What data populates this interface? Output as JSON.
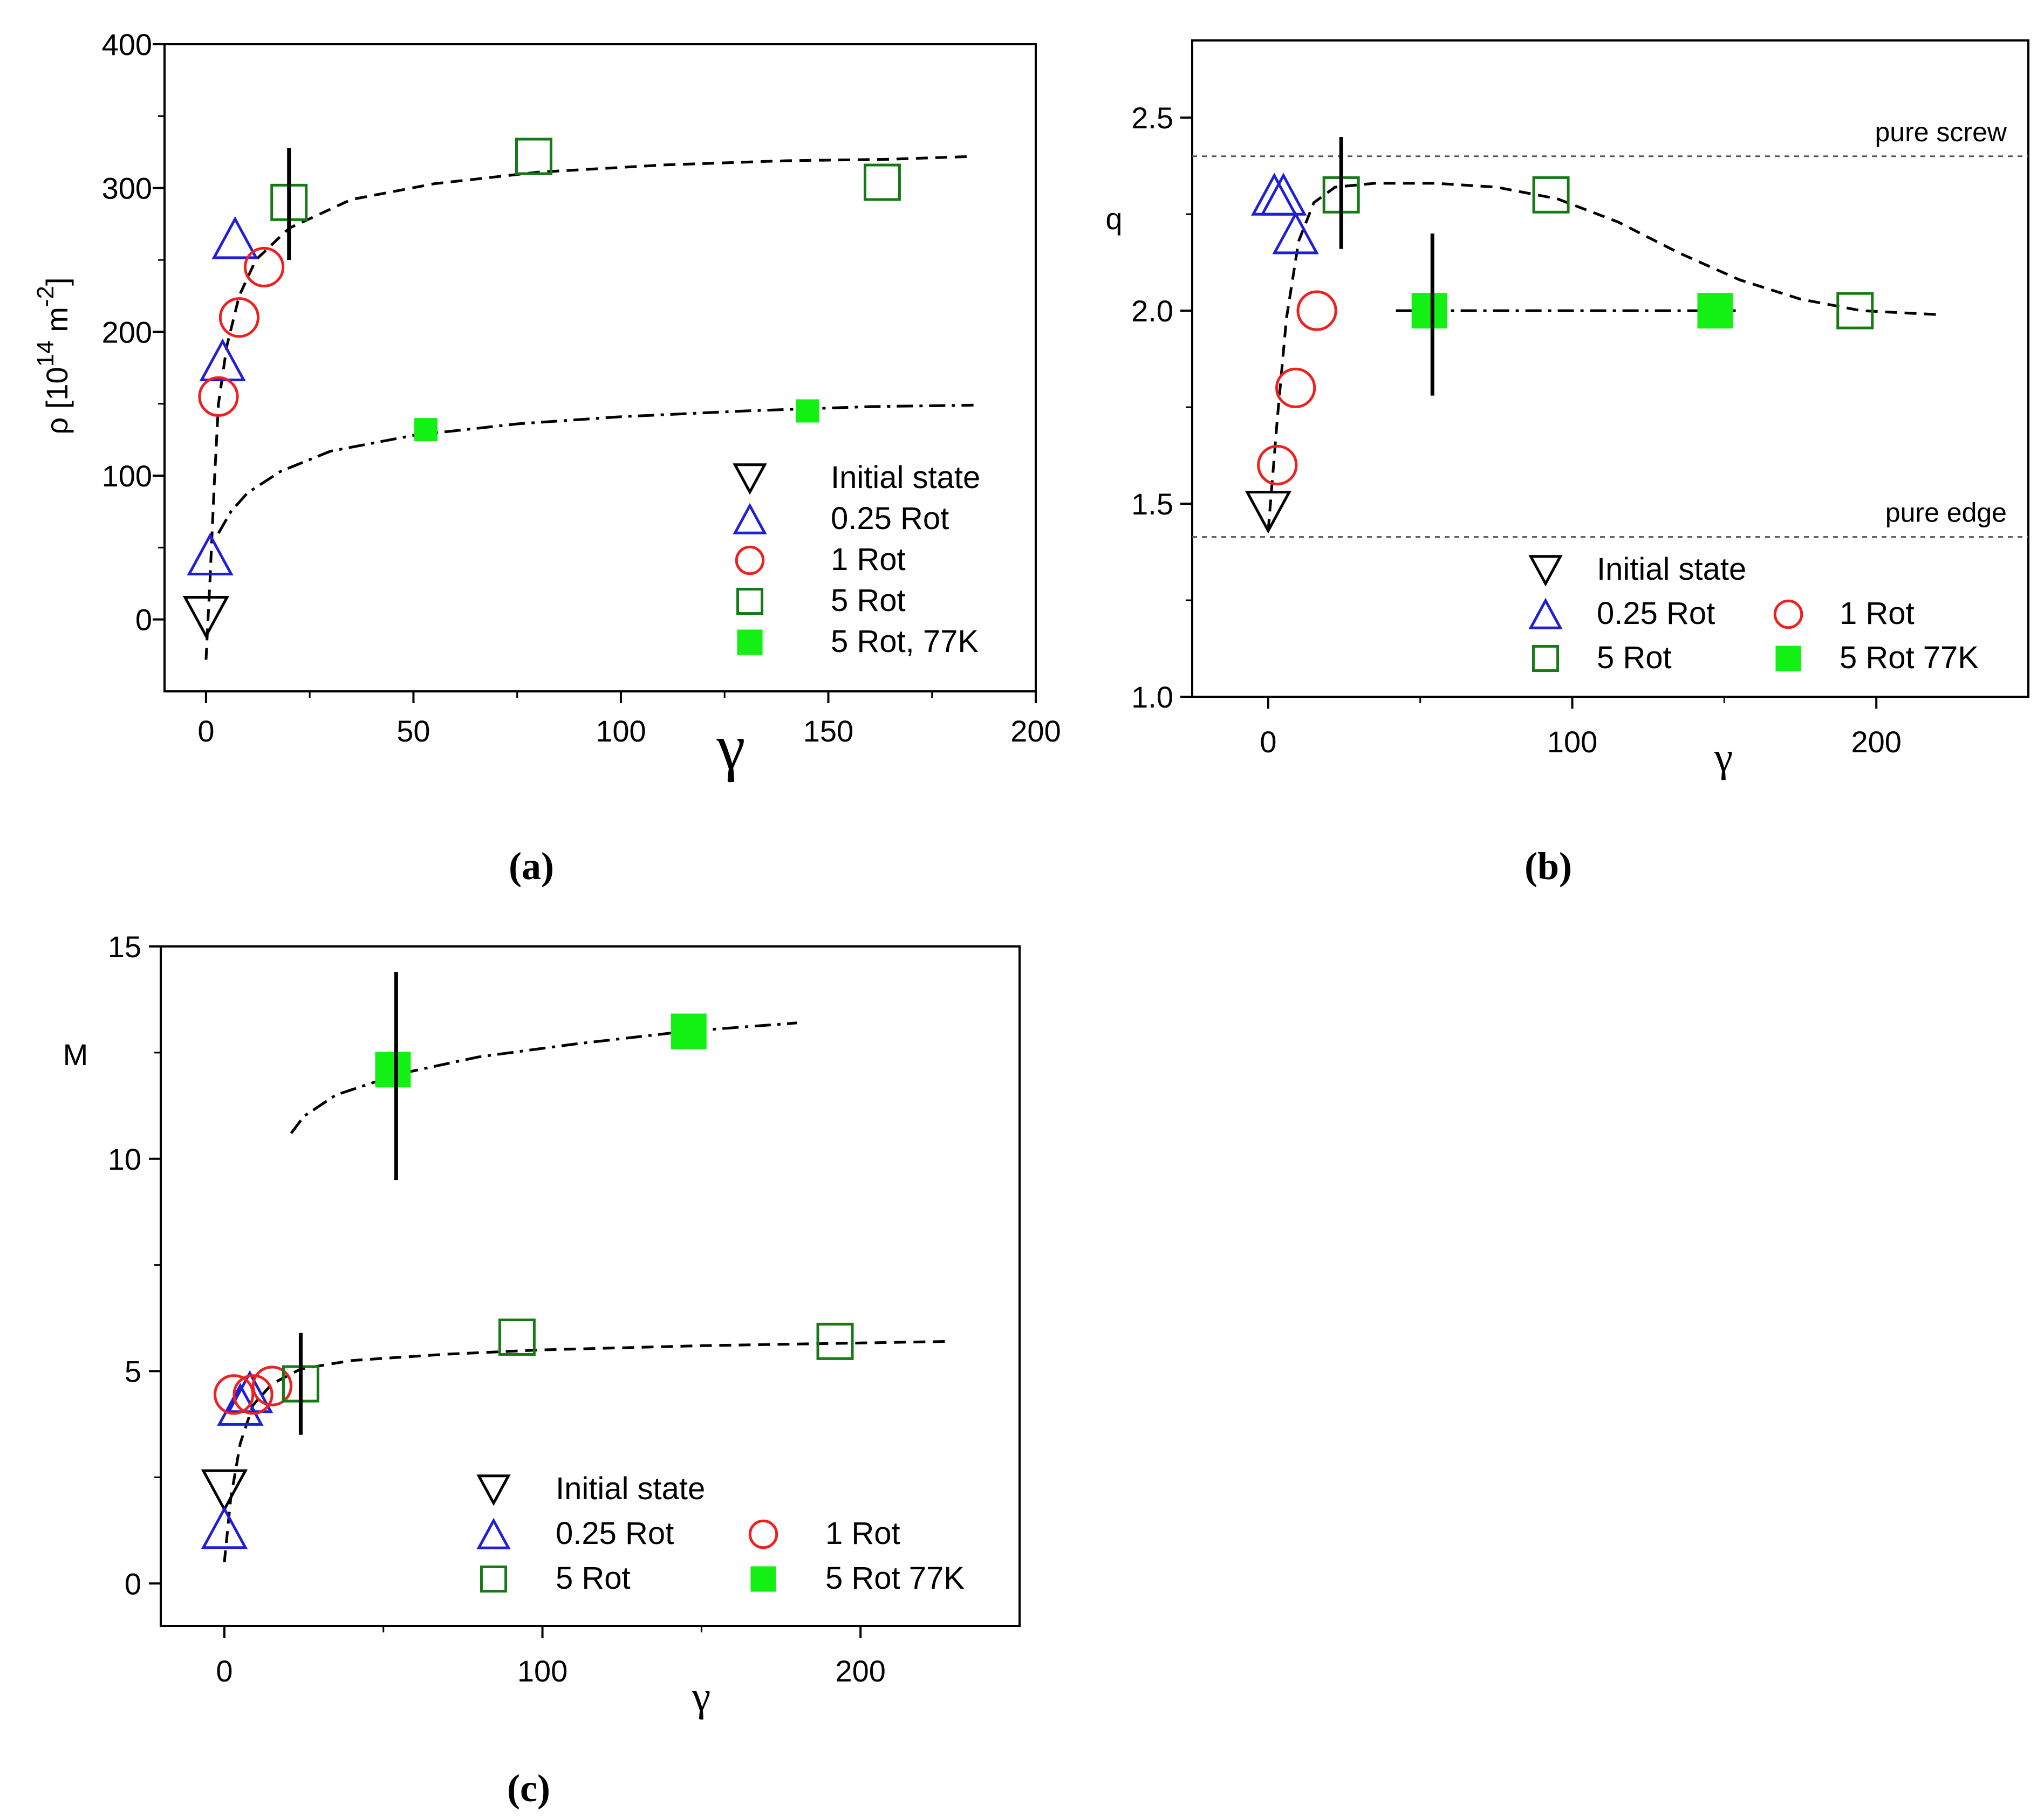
{
  "colors": {
    "initial": "#000000",
    "rot025": "#1f1fd6",
    "rot1": "#ee2020",
    "rot5": "#157a15",
    "rot5_77k": "#13f013",
    "axis": "#000000"
  },
  "chart_data": [
    {
      "id": "a",
      "type": "scatter",
      "panel_label": "(a)",
      "xlabel": "γ",
      "ylabel": "ρ [10",
      "ylabel_sup": "14",
      "ylabel_unit": " m",
      "ylabel_unit_sup": "-2",
      "ylabel_close": "]",
      "xlim": [
        -10,
        200
      ],
      "ylim": [
        -50,
        400
      ],
      "xticks": [
        "0",
        "50",
        "100",
        "150",
        "200"
      ],
      "xtick_values": [
        0,
        50,
        100,
        150,
        200
      ],
      "yticks": [
        "0",
        "100",
        "200",
        "300",
        "400"
      ],
      "ytick_values": [
        0,
        100,
        200,
        300,
        400
      ],
      "legend_position": "bottom-right",
      "legend": [
        {
          "label": "Initial state",
          "series": "initial"
        },
        {
          "label": "0.25 Rot",
          "series": "rot025"
        },
        {
          "label": "1 Rot",
          "series": "rot1"
        },
        {
          "label": "5 Rot",
          "series": "rot5"
        },
        {
          "label": "5 Rot,  77K",
          "series": "rot5_77k"
        }
      ],
      "series": [
        {
          "name": "Initial state",
          "key": "initial",
          "marker": "triangle-down",
          "size": "big",
          "points": [
            [
              0,
              2
            ]
          ]
        },
        {
          "name": "0.25 Rot",
          "key": "rot025",
          "marker": "triangle-up",
          "size": "big",
          "points": [
            [
              1,
              45
            ],
            [
              4,
              180
            ],
            [
              7,
              265
            ]
          ]
        },
        {
          "name": "1 Rot",
          "key": "rot1",
          "marker": "circle",
          "size": "big",
          "points": [
            [
              3,
              155
            ],
            [
              8,
              210
            ],
            [
              14,
              245
            ]
          ]
        },
        {
          "name": "5 Rot",
          "key": "rot5",
          "marker": "square",
          "size": "big",
          "points": [
            [
              20,
              290
            ],
            [
              79,
              322
            ],
            [
              163,
              304
            ]
          ]
        },
        {
          "name": "5 Rot, 77K",
          "key": "rot5_77k",
          "marker": "square-filled",
          "size": "small",
          "points": [
            [
              53,
              132
            ],
            [
              145,
              145
            ]
          ]
        }
      ],
      "error_bars": [
        [
          20,
          250,
          328
        ]
      ],
      "fit_lines": [
        {
          "style": "dash",
          "points": [
            [
              0,
              -28
            ],
            [
              1,
              30
            ],
            [
              2,
              95
            ],
            [
              3,
              150
            ],
            [
              5,
              190
            ],
            [
              8,
              225
            ],
            [
              12,
              250
            ],
            [
              20,
              272
            ],
            [
              35,
              292
            ],
            [
              55,
              303
            ],
            [
              80,
              311
            ],
            [
              110,
              316
            ],
            [
              140,
              319
            ],
            [
              165,
              320
            ],
            [
              185,
              322
            ]
          ]
        },
        {
          "style": "dashdot",
          "points": [
            [
              3,
              60
            ],
            [
              6,
              75
            ],
            [
              10,
              88
            ],
            [
              18,
              103
            ],
            [
              30,
              117
            ],
            [
              50,
              128
            ],
            [
              75,
              136
            ],
            [
              100,
              141
            ],
            [
              130,
              145
            ],
            [
              160,
              148
            ],
            [
              185,
              149
            ]
          ]
        }
      ]
    },
    {
      "id": "b",
      "type": "scatter",
      "panel_label": "(b)",
      "xlabel": "γ",
      "ylabel": "q",
      "xlim": [
        -25,
        250
      ],
      "ylim": [
        1.0,
        2.7
      ],
      "xticks": [
        "0",
        "100",
        "200"
      ],
      "xtick_values": [
        0,
        100,
        200
      ],
      "yticks": [
        "1.0",
        "1.5",
        "2.0",
        "2.5"
      ],
      "ytick_values": [
        1.0,
        1.5,
        2.0,
        2.5
      ],
      "legend_position": "bottom",
      "reference_lines": [
        {
          "label": "pure screw",
          "y": 2.4
        },
        {
          "label": "pure edge",
          "y": 1.414
        }
      ],
      "legend": [
        {
          "label": "Initial state",
          "series": "initial"
        },
        {
          "label": "0.25 Rot",
          "series": "rot025"
        },
        {
          "label": "1 Rot",
          "series": "rot1"
        },
        {
          "label": "5 Rot",
          "series": "rot5"
        },
        {
          "label": "5 Rot  77K",
          "series": "rot5_77k"
        }
      ],
      "series": [
        {
          "name": "Initial state",
          "key": "initial",
          "marker": "triangle-down",
          "size": "big",
          "points": [
            [
              0,
              1.48
            ]
          ]
        },
        {
          "name": "0.25 Rot",
          "key": "rot025",
          "marker": "triangle-up",
          "size": "big",
          "points": [
            [
              2,
              2.3
            ],
            [
              5,
              2.3
            ],
            [
              9,
              2.2
            ]
          ]
        },
        {
          "name": "1 Rot",
          "key": "rot1",
          "marker": "circle",
          "size": "big",
          "points": [
            [
              3,
              1.6
            ],
            [
              9,
              1.8
            ],
            [
              16,
              2.0
            ]
          ]
        },
        {
          "name": "5 Rot",
          "key": "rot5",
          "marker": "square",
          "size": "big",
          "points": [
            [
              24,
              2.3
            ],
            [
              93,
              2.3
            ],
            [
              193,
              2.0
            ]
          ]
        },
        {
          "name": "5 Rot 77K",
          "key": "rot5_77k",
          "marker": "square-filled",
          "size": "big",
          "points": [
            [
              53,
              2.0
            ],
            [
              147,
              2.0
            ]
          ]
        }
      ],
      "error_bars": [
        [
          24,
          2.16,
          2.45
        ],
        [
          54,
          1.78,
          2.2
        ]
      ],
      "fit_lines": [
        {
          "style": "dash",
          "points": [
            [
              0,
              1.43
            ],
            [
              3,
              1.72
            ],
            [
              6,
              1.98
            ],
            [
              10,
              2.18
            ],
            [
              15,
              2.28
            ],
            [
              22,
              2.32
            ],
            [
              35,
              2.33
            ],
            [
              55,
              2.33
            ],
            [
              75,
              2.32
            ],
            [
              95,
              2.29
            ],
            [
              115,
              2.23
            ],
            [
              135,
              2.15
            ],
            [
              155,
              2.08
            ],
            [
              175,
              2.03
            ],
            [
              195,
              2.0
            ],
            [
              220,
              1.99
            ]
          ]
        },
        {
          "style": "dashdot",
          "points": [
            [
              42,
              2.0
            ],
            [
              90,
              2.0
            ],
            [
              155,
              2.0
            ]
          ]
        }
      ]
    },
    {
      "id": "c",
      "type": "scatter",
      "panel_label": "(c)",
      "xlabel": "γ",
      "ylabel": "M",
      "xlim": [
        -20,
        250
      ],
      "ylim": [
        -1,
        15
      ],
      "xticks": [
        "0",
        "100",
        "200"
      ],
      "xtick_values": [
        0,
        100,
        200
      ],
      "yticks": [
        "0",
        "5",
        "10",
        "15"
      ],
      "ytick_values": [
        0,
        5,
        10,
        15
      ],
      "legend_position": "bottom",
      "legend": [
        {
          "label": "Initial state",
          "series": "initial"
        },
        {
          "label": "0.25 Rot",
          "series": "rot025"
        },
        {
          "label": "1 Rot",
          "series": "rot1"
        },
        {
          "label": "5 Rot",
          "series": "rot5"
        },
        {
          "label": "5 Rot  77K",
          "series": "rot5_77k"
        }
      ],
      "series": [
        {
          "name": "Initial state",
          "key": "initial",
          "marker": "triangle-down",
          "size": "big",
          "points": [
            [
              0,
              2.2
            ]
          ]
        },
        {
          "name": "0.25 Rot",
          "key": "rot025",
          "marker": "triangle-up",
          "size": "big",
          "points": [
            [
              0,
              1.3
            ],
            [
              5,
              4.2
            ],
            [
              8,
              4.5
            ]
          ]
        },
        {
          "name": "1 Rot",
          "key": "rot1",
          "marker": "circle",
          "size": "big",
          "points": [
            [
              3,
              4.45
            ],
            [
              9,
              4.45
            ],
            [
              15,
              4.65
            ]
          ]
        },
        {
          "name": "5 Rot",
          "key": "rot5",
          "marker": "square",
          "size": "big",
          "points": [
            [
              24,
              4.7
            ],
            [
              92,
              5.8
            ],
            [
              192,
              5.7
            ]
          ]
        },
        {
          "name": "5 Rot 77K",
          "key": "rot5_77k",
          "marker": "square-filled",
          "size": "big",
          "points": [
            [
              53,
              12.1
            ],
            [
              146,
              13.0
            ]
          ]
        }
      ],
      "error_bars": [
        [
          24,
          3.5,
          5.9
        ],
        [
          54,
          9.5,
          14.4
        ]
      ],
      "fit_lines": [
        {
          "style": "dash",
          "points": [
            [
              0,
              0.5
            ],
            [
              2,
              2.0
            ],
            [
              5,
              3.3
            ],
            [
              9,
              4.2
            ],
            [
              15,
              4.7
            ],
            [
              24,
              5.05
            ],
            [
              40,
              5.25
            ],
            [
              70,
              5.4
            ],
            [
              100,
              5.5
            ],
            [
              150,
              5.6
            ],
            [
              190,
              5.65
            ],
            [
              228,
              5.7
            ]
          ]
        },
        {
          "style": "dashdot",
          "points": [
            [
              21,
              10.6
            ],
            [
              25,
              11.0
            ],
            [
              35,
              11.5
            ],
            [
              55,
              12.0
            ],
            [
              80,
              12.4
            ],
            [
              110,
              12.7
            ],
            [
              145,
              13.0
            ],
            [
              180,
              13.2
            ]
          ]
        }
      ]
    }
  ]
}
